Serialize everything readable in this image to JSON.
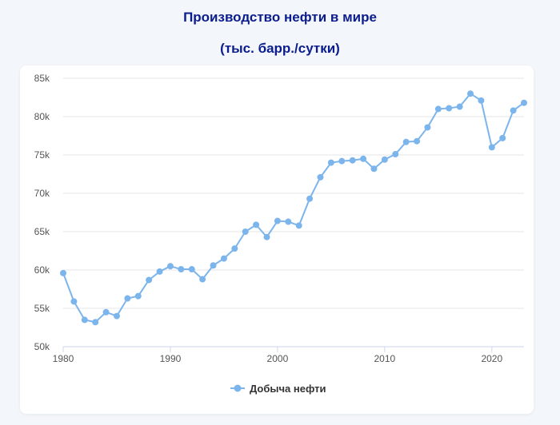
{
  "chart_data": {
    "type": "line",
    "title": "Производство нефти в мире",
    "subtitle": "(тыс. барр./сутки)",
    "xlabel": "",
    "ylabel": "",
    "xlim": [
      1980,
      2023
    ],
    "ylim": [
      50000,
      85000
    ],
    "x_ticks": [
      1980,
      1990,
      2000,
      2010,
      2020
    ],
    "y_ticks": [
      50000,
      55000,
      60000,
      65000,
      70000,
      75000,
      80000,
      85000
    ],
    "y_tick_labels": [
      "50k",
      "55k",
      "60k",
      "65k",
      "70k",
      "75k",
      "80k",
      "85k"
    ],
    "grid": true,
    "legend_position": "bottom",
    "color": "#7cb5ec",
    "x": [
      1980,
      1981,
      1982,
      1983,
      1984,
      1985,
      1986,
      1987,
      1988,
      1989,
      1990,
      1991,
      1992,
      1993,
      1994,
      1995,
      1996,
      1997,
      1998,
      1999,
      2000,
      2001,
      2002,
      2003,
      2004,
      2005,
      2006,
      2007,
      2008,
      2009,
      2010,
      2011,
      2012,
      2013,
      2014,
      2015,
      2016,
      2017,
      2018,
      2019,
      2020,
      2021,
      2022,
      2023
    ],
    "series": [
      {
        "name": "Добыча нефти",
        "values": [
          59600,
          55900,
          53500,
          53200,
          54500,
          54000,
          56300,
          56600,
          58700,
          59800,
          60500,
          60100,
          60100,
          58800,
          60600,
          61500,
          62800,
          65000,
          65900,
          64300,
          66400,
          66300,
          65800,
          69300,
          72100,
          74000,
          74200,
          74300,
          74500,
          73200,
          74400,
          75100,
          76700,
          76800,
          78600,
          81000,
          81100,
          81300,
          83000,
          82100,
          76000,
          77200,
          80800,
          81800
        ]
      }
    ]
  }
}
